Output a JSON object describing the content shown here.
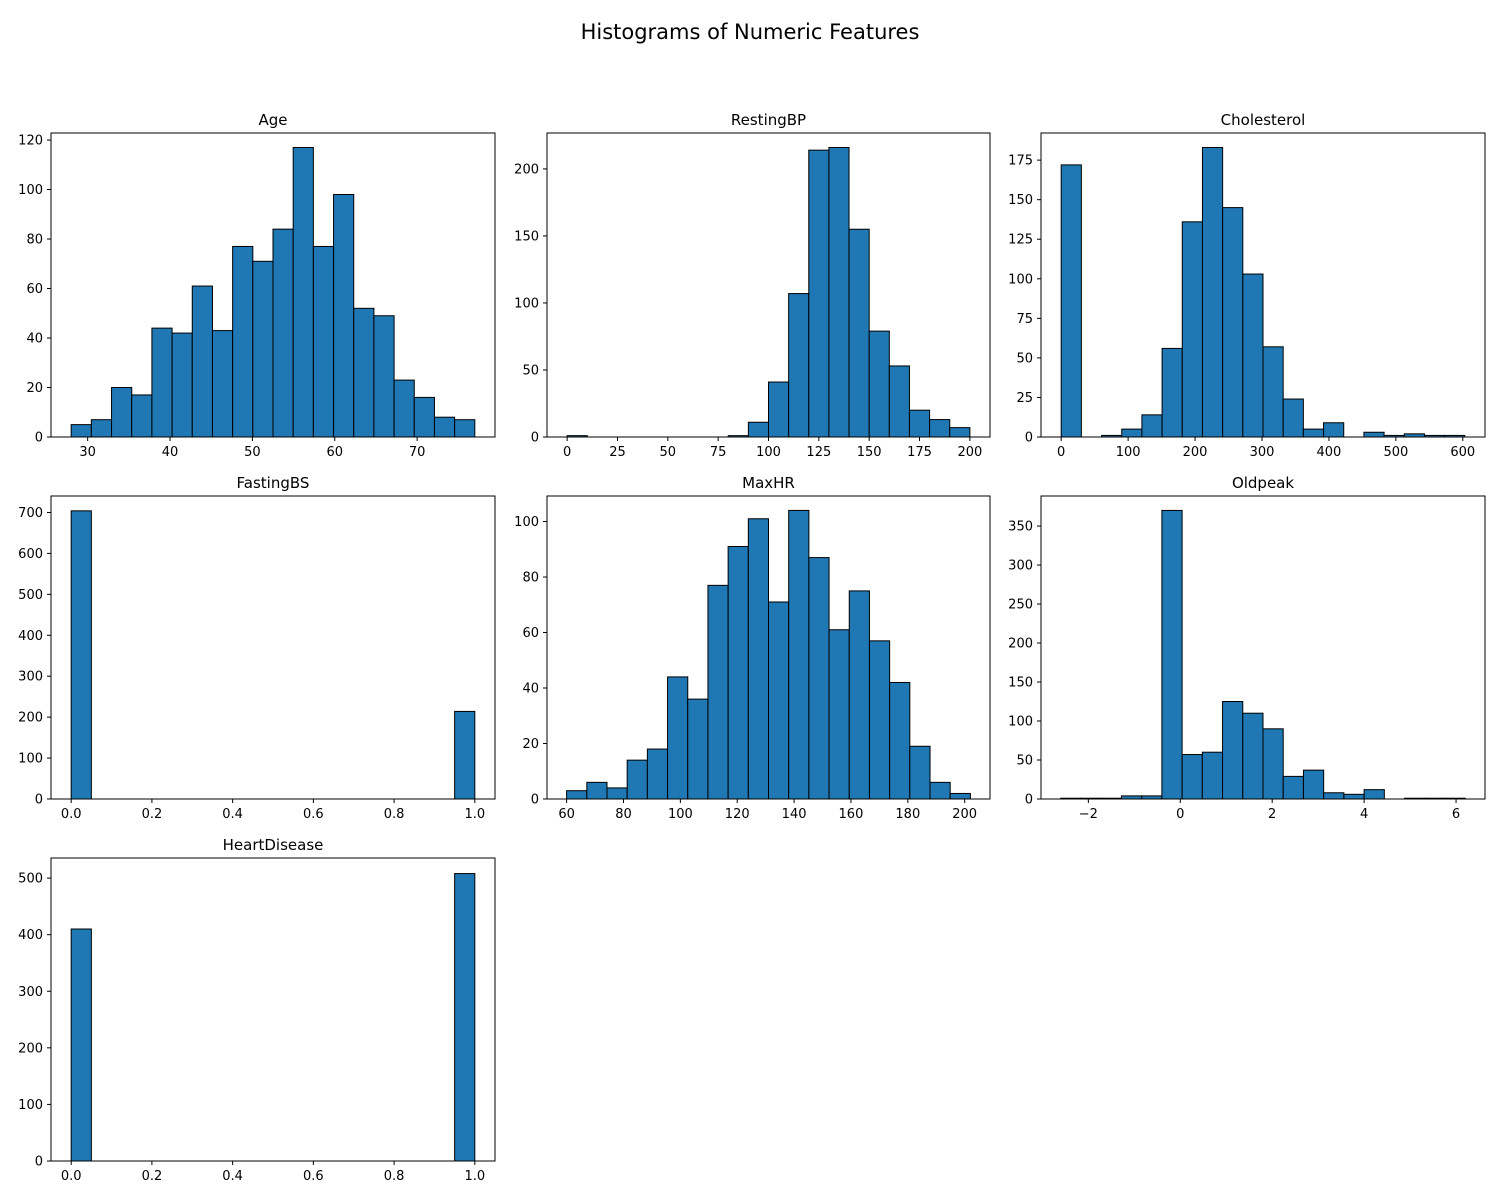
{
  "figure": {
    "title": "Histograms of Numeric Features"
  },
  "colors": {
    "bar_fill": "#1f77b4",
    "bar_edge": "#000000",
    "axes": "#000000",
    "background": "#ffffff"
  },
  "chart_data": [
    {
      "type": "bar",
      "subtype": "histogram",
      "title": "Age",
      "xlabel": "",
      "ylabel": "",
      "xlim": [
        25.55,
        79.45
      ],
      "ylim": [
        0,
        122.85
      ],
      "xticks": [
        30,
        40,
        50,
        60,
        70
      ],
      "yticks": [
        0,
        20,
        40,
        60,
        80,
        100,
        120
      ],
      "bin_edges": [
        28,
        30.45,
        32.9,
        35.35,
        37.8,
        40.25,
        42.7,
        45.15,
        47.6,
        50.05,
        52.5,
        54.95,
        57.4,
        59.85,
        62.3,
        64.75,
        67.2,
        69.65,
        72.1,
        74.55,
        77
      ],
      "counts": [
        5,
        7,
        20,
        17,
        44,
        42,
        61,
        43,
        77,
        71,
        84,
        117,
        77,
        98,
        52,
        49,
        23,
        16,
        8,
        7
      ],
      "grid": false,
      "legend": "none"
    },
    {
      "type": "bar",
      "subtype": "histogram",
      "title": "RestingBP",
      "xlabel": "",
      "ylabel": "",
      "xlim": [
        -10,
        210
      ],
      "ylim": [
        0,
        226.8
      ],
      "xticks": [
        0,
        25,
        50,
        75,
        100,
        125,
        150,
        175,
        200
      ],
      "yticks": [
        0,
        50,
        100,
        150,
        200
      ],
      "bin_edges": [
        0,
        10,
        20,
        30,
        40,
        50,
        60,
        70,
        80,
        90,
        100,
        110,
        120,
        130,
        140,
        150,
        160,
        170,
        180,
        190,
        200
      ],
      "counts": [
        1,
        0,
        0,
        0,
        0,
        0,
        0,
        0,
        1,
        11,
        41,
        107,
        214,
        216,
        155,
        79,
        53,
        20,
        13,
        7
      ],
      "grid": false,
      "legend": "none"
    },
    {
      "type": "bar",
      "subtype": "histogram",
      "title": "Cholesterol",
      "xlabel": "",
      "ylabel": "",
      "xlim": [
        -30.15,
        633.15
      ],
      "ylim": [
        0,
        192.15
      ],
      "xticks": [
        0,
        100,
        200,
        300,
        400,
        500,
        600
      ],
      "yticks": [
        0,
        25,
        50,
        75,
        100,
        125,
        150,
        175
      ],
      "bin_edges": [
        0,
        30.15,
        60.3,
        90.45,
        120.6,
        150.75,
        180.9,
        211.05,
        241.2,
        271.35,
        301.5,
        331.65,
        361.8,
        391.95,
        422.1,
        452.25,
        482.4,
        512.55,
        542.7,
        572.85,
        603
      ],
      "counts": [
        172,
        0,
        1,
        5,
        14,
        56,
        136,
        183,
        145,
        103,
        57,
        24,
        5,
        9,
        0,
        3,
        1,
        2,
        1,
        1
      ],
      "grid": false,
      "legend": "none"
    },
    {
      "type": "bar",
      "subtype": "histogram",
      "title": "FastingBS",
      "xlabel": "",
      "ylabel": "",
      "xlim": [
        -0.05,
        1.05
      ],
      "ylim": [
        0,
        740.25
      ],
      "xticks": [
        0.0,
        0.2,
        0.4,
        0.6,
        0.8,
        1.0
      ],
      "xtick_labels": [
        "0.0",
        "0.2",
        "0.4",
        "0.6",
        "0.8",
        "1.0"
      ],
      "yticks": [
        0,
        100,
        200,
        300,
        400,
        500,
        600,
        700
      ],
      "bin_edges": [
        0,
        0.05,
        0.1,
        0.15,
        0.2,
        0.25,
        0.3,
        0.35,
        0.4,
        0.45,
        0.5,
        0.55,
        0.6,
        0.65,
        0.7,
        0.75,
        0.8,
        0.85,
        0.9,
        0.95,
        1.0
      ],
      "counts": [
        704,
        0,
        0,
        0,
        0,
        0,
        0,
        0,
        0,
        0,
        0,
        0,
        0,
        0,
        0,
        0,
        0,
        0,
        0,
        214
      ],
      "grid": false,
      "legend": "none"
    },
    {
      "type": "bar",
      "subtype": "histogram",
      "title": "MaxHR",
      "xlabel": "",
      "ylabel": "",
      "xlim": [
        53.1,
        208.9
      ],
      "ylim": [
        0,
        109.2
      ],
      "xticks": [
        60,
        80,
        100,
        120,
        140,
        160,
        180,
        200
      ],
      "yticks": [
        0,
        20,
        40,
        60,
        80,
        100
      ],
      "bin_edges": [
        60,
        67.1,
        74.2,
        81.3,
        88.4,
        95.5,
        102.6,
        109.7,
        116.8,
        123.9,
        131,
        138.1,
        145.2,
        152.3,
        159.4,
        166.5,
        173.6,
        180.7,
        187.8,
        194.9,
        202
      ],
      "counts": [
        3,
        6,
        4,
        14,
        18,
        44,
        36,
        77,
        91,
        101,
        71,
        104,
        87,
        61,
        75,
        57,
        42,
        19,
        6,
        2
      ],
      "grid": false,
      "legend": "none"
    },
    {
      "type": "bar",
      "subtype": "histogram",
      "title": "Oldpeak",
      "xlabel": "",
      "ylabel": "",
      "xlim": [
        -3.03,
        6.63
      ],
      "ylim": [
        0,
        388.5
      ],
      "xticks": [
        -2,
        0,
        2,
        4,
        6
      ],
      "xtick_labels": [
        "−2",
        "0",
        "2",
        "4",
        "6"
      ],
      "yticks": [
        0,
        50,
        100,
        150,
        200,
        250,
        300,
        350
      ],
      "bin_edges": [
        -2.6,
        -2.16,
        -1.72,
        -1.28,
        -0.84,
        -0.4,
        0.04,
        0.48,
        0.92,
        1.36,
        1.8,
        2.24,
        2.68,
        3.12,
        3.56,
        4.0,
        4.44,
        4.88,
        5.32,
        5.76,
        6.2
      ],
      "counts": [
        1,
        1,
        1,
        4,
        4,
        370,
        57,
        60,
        125,
        110,
        90,
        29,
        37,
        8,
        6,
        12,
        0,
        1,
        1,
        1
      ],
      "grid": false,
      "legend": "none"
    },
    {
      "type": "bar",
      "subtype": "histogram",
      "title": "HeartDisease",
      "xlabel": "",
      "ylabel": "",
      "xlim": [
        -0.05,
        1.05
      ],
      "ylim": [
        0,
        535.5
      ],
      "xticks": [
        0.0,
        0.2,
        0.4,
        0.6,
        0.8,
        1.0
      ],
      "xtick_labels": [
        "0.0",
        "0.2",
        "0.4",
        "0.6",
        "0.8",
        "1.0"
      ],
      "yticks": [
        0,
        100,
        200,
        300,
        400,
        500
      ],
      "bin_edges": [
        0,
        0.05,
        0.1,
        0.15,
        0.2,
        0.25,
        0.3,
        0.35,
        0.4,
        0.45,
        0.5,
        0.55,
        0.6,
        0.65,
        0.7,
        0.75,
        0.8,
        0.85,
        0.9,
        0.95,
        1.0
      ],
      "counts": [
        410,
        0,
        0,
        0,
        0,
        0,
        0,
        0,
        0,
        0,
        0,
        0,
        0,
        0,
        0,
        0,
        0,
        0,
        0,
        508
      ],
      "grid": false,
      "legend": "none"
    }
  ]
}
